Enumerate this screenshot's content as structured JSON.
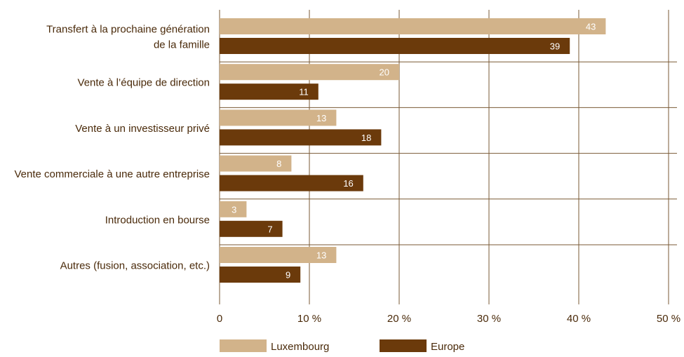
{
  "chart_data": {
    "type": "bar",
    "orientation": "horizontal",
    "title": "",
    "xlabel": "",
    "ylabel": "",
    "xlim": [
      0,
      50
    ],
    "x_ticks": [
      0,
      10,
      20,
      30,
      40,
      50
    ],
    "x_tick_labels": [
      "0",
      "10 %",
      "20 %",
      "30 %",
      "40 %",
      "50 %"
    ],
    "grid": "vertical",
    "legend_position": "bottom",
    "categories": [
      [
        "Transfert à la prochaine génération",
        "de la famille"
      ],
      [
        "Vente à l’équipe de direction"
      ],
      [
        "Vente à un investisseur privé"
      ],
      [
        "Vente commerciale à une autre entreprise"
      ],
      [
        "Introduction en bourse"
      ],
      [
        "Autres (fusion, association, etc.)"
      ]
    ],
    "series": [
      {
        "name": "Luxembourg",
        "color": "#d2b38a",
        "values": [
          43,
          20,
          13,
          8,
          3,
          13
        ]
      },
      {
        "name": "Europe",
        "color": "#6b3a0b",
        "values": [
          39,
          11,
          18,
          16,
          7,
          9
        ]
      }
    ],
    "colors": {
      "grid": "#7a5a35",
      "text": "#4a2a0a",
      "value_label": "#ffffff"
    }
  }
}
